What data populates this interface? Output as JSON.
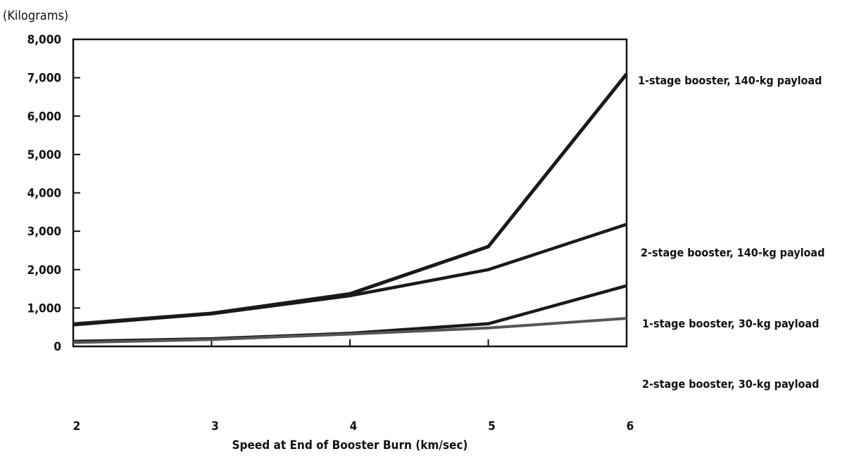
{
  "chart_data": {
    "type": "line",
    "title": "",
    "ylabel": "(Kilograms)",
    "xlabel": "Speed at End of Booster Burn (km/sec)",
    "x": [
      2,
      3,
      4,
      5,
      6
    ],
    "xlim": [
      2,
      6
    ],
    "ylim": [
      0,
      8000
    ],
    "yticks": [
      0,
      1000,
      2000,
      3000,
      4000,
      5000,
      6000,
      7000,
      8000
    ],
    "ytick_labels": [
      "0",
      "1,000",
      "2,000",
      "3,000",
      "4,000",
      "5,000",
      "6,000",
      "7,000",
      "8,000"
    ],
    "xtick_labels": [
      "2",
      "3",
      "4",
      "5",
      "6"
    ],
    "grid": false,
    "legend": "direct labels at right end of each line",
    "series": [
      {
        "name": "1-stage booster, 140-kg payload",
        "values": [
          580,
          860,
          1370,
          2600,
          7100
        ],
        "color": "#1a1a1a"
      },
      {
        "name": "2-stage booster, 140-kg payload",
        "values": [
          560,
          850,
          1320,
          2000,
          3180
        ],
        "color": "#1a1a1a"
      },
      {
        "name": "1-stage booster, 30-kg payload",
        "values": [
          130,
          200,
          340,
          590,
          1580
        ],
        "color": "#1a1a1a"
      },
      {
        "name": "2-stage booster, 30-kg payload",
        "values": [
          100,
          180,
          320,
          480,
          730
        ],
        "color": "#555555"
      }
    ]
  }
}
